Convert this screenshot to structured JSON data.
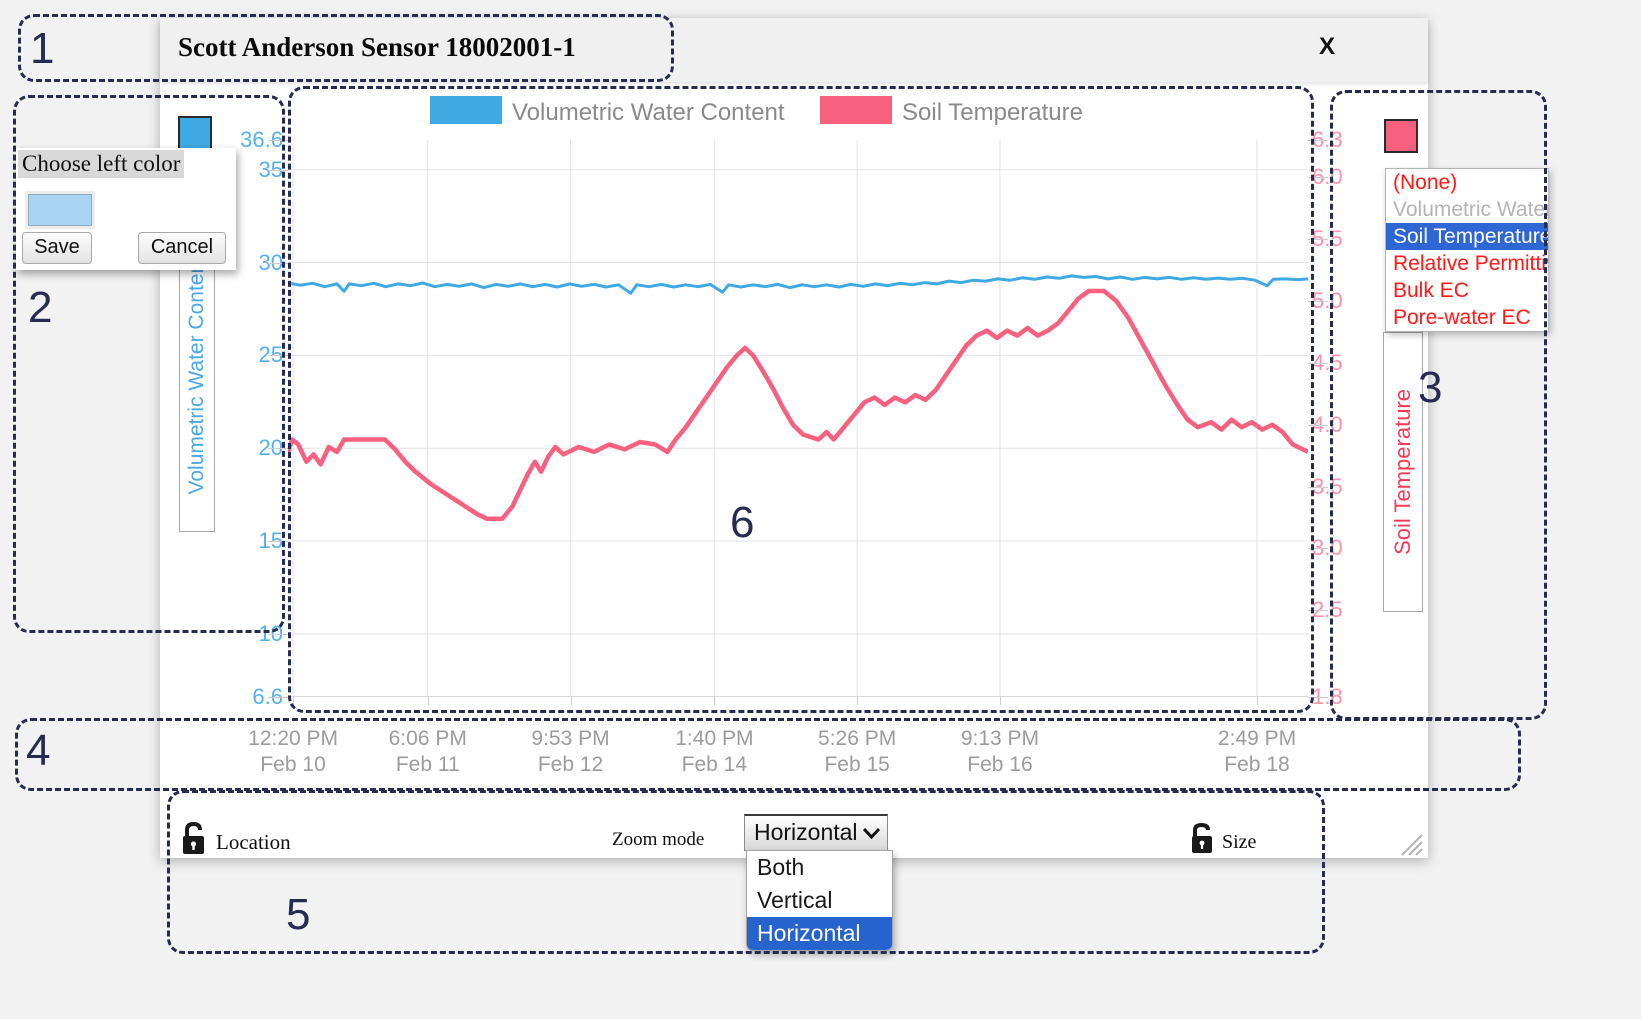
{
  "window": {
    "title": "Scott Anderson Sensor 18002001-1",
    "close_label": "X"
  },
  "color_picker": {
    "title": "Choose left color",
    "save_label": "Save",
    "cancel_label": "Cancel",
    "swatch_color": "#a9d4f3"
  },
  "axis_color_buttons": {
    "left_color": "#3fa9e1",
    "right_color": "#f8607f"
  },
  "series_menu": {
    "selected": "Soil Temperature",
    "items": [
      {
        "label": "(None)",
        "color": "#ff1a1a",
        "selected": false
      },
      {
        "label": "Volumetric Water Content",
        "color": "#b4b4b4",
        "selected": false
      },
      {
        "label": "Soil Temperature",
        "color": "#ffffff",
        "selected": true
      },
      {
        "label": "Relative Permittivity",
        "color": "#ff1a1a",
        "selected": false
      },
      {
        "label": "Bulk EC",
        "color": "#ff1a1a",
        "selected": false
      },
      {
        "label": "Pore-water EC",
        "color": "#ff1a1a",
        "selected": false
      }
    ],
    "highlight_color": "#2e67d3"
  },
  "toolbar": {
    "location_label": "Location",
    "zoom_mode_label": "Zoom mode",
    "zoom_mode_value": "Horizontal",
    "zoom_options": [
      "Both",
      "Vertical",
      "Horizontal"
    ],
    "zoom_selected": "Horizontal",
    "size_label": "Size"
  },
  "annotations": {
    "labels": [
      "1",
      "2",
      "3",
      "4",
      "5",
      "6"
    ]
  },
  "chart_data": {
    "type": "line",
    "legend": [
      {
        "name": "Volumetric Water Content",
        "color": "#3fa9e1"
      },
      {
        "name": "Soil Temperature",
        "color": "#f8607f"
      }
    ],
    "left_axis": {
      "label": "Volumetric Water Content",
      "range": [
        6.6,
        36.6
      ],
      "ticks": [
        "36.6",
        "35",
        "30",
        "25",
        "20",
        "15",
        "10",
        "6.6"
      ],
      "tick_values": [
        36.6,
        35,
        30,
        25,
        20,
        15,
        10,
        6.6
      ],
      "color": "#56b1ea"
    },
    "right_axis": {
      "label": "Soil Temperature",
      "range": [
        1.8,
        6.3
      ],
      "ticks": [
        "6.3",
        "6.0",
        "5.5",
        "5.0",
        "4.5",
        "4.0",
        "3.5",
        "3.0",
        "2.5",
        "1.8"
      ],
      "tick_values": [
        6.3,
        6.0,
        5.5,
        5.0,
        4.5,
        4.0,
        3.5,
        3.0,
        2.5,
        1.8
      ],
      "color": "#fb93a9"
    },
    "x_axis": {
      "ticks": [
        {
          "time": "12:20 PM",
          "date": "Feb 10",
          "pos": 0.005
        },
        {
          "time": "6:06 PM",
          "date": "Feb 11",
          "pos": 0.137
        },
        {
          "time": "9:53 PM",
          "date": "Feb 12",
          "pos": 0.277
        },
        {
          "time": "1:40 PM",
          "date": "Feb 14",
          "pos": 0.418
        },
        {
          "time": "5:26 PM",
          "date": "Feb 15",
          "pos": 0.558
        },
        {
          "time": "9:13 PM",
          "date": "Feb 16",
          "pos": 0.698
        },
        {
          "time": "2:49 PM",
          "date": "Feb 18",
          "pos": 0.95
        }
      ]
    },
    "grid": true,
    "series": [
      {
        "name": "Volumetric Water Content",
        "axis": "left",
        "color": "#3fa9e1",
        "width": 3,
        "points": [
          [
            0,
            28.9
          ],
          [
            0.012,
            28.78
          ],
          [
            0.024,
            28.88
          ],
          [
            0.036,
            28.7
          ],
          [
            0.048,
            28.85
          ],
          [
            0.055,
            28.45
          ],
          [
            0.06,
            28.85
          ],
          [
            0.072,
            28.75
          ],
          [
            0.084,
            28.88
          ],
          [
            0.096,
            28.7
          ],
          [
            0.108,
            28.85
          ],
          [
            0.12,
            28.75
          ],
          [
            0.132,
            28.9
          ],
          [
            0.144,
            28.7
          ],
          [
            0.156,
            28.82
          ],
          [
            0.168,
            28.72
          ],
          [
            0.18,
            28.85
          ],
          [
            0.192,
            28.65
          ],
          [
            0.204,
            28.82
          ],
          [
            0.216,
            28.72
          ],
          [
            0.228,
            28.85
          ],
          [
            0.24,
            28.7
          ],
          [
            0.252,
            28.82
          ],
          [
            0.264,
            28.68
          ],
          [
            0.276,
            28.85
          ],
          [
            0.288,
            28.72
          ],
          [
            0.3,
            28.82
          ],
          [
            0.312,
            28.68
          ],
          [
            0.324,
            28.8
          ],
          [
            0.336,
            28.35
          ],
          [
            0.342,
            28.8
          ],
          [
            0.354,
            28.7
          ],
          [
            0.366,
            28.82
          ],
          [
            0.378,
            28.68
          ],
          [
            0.39,
            28.8
          ],
          [
            0.402,
            28.7
          ],
          [
            0.414,
            28.82
          ],
          [
            0.426,
            28.4
          ],
          [
            0.432,
            28.8
          ],
          [
            0.444,
            28.68
          ],
          [
            0.456,
            28.8
          ],
          [
            0.468,
            28.7
          ],
          [
            0.48,
            28.82
          ],
          [
            0.492,
            28.65
          ],
          [
            0.504,
            28.8
          ],
          [
            0.516,
            28.7
          ],
          [
            0.528,
            28.8
          ],
          [
            0.54,
            28.68
          ],
          [
            0.552,
            28.82
          ],
          [
            0.564,
            28.72
          ],
          [
            0.576,
            28.85
          ],
          [
            0.588,
            28.75
          ],
          [
            0.6,
            28.88
          ],
          [
            0.612,
            28.8
          ],
          [
            0.624,
            28.92
          ],
          [
            0.636,
            28.85
          ],
          [
            0.648,
            29.0
          ],
          [
            0.66,
            28.92
          ],
          [
            0.672,
            29.05
          ],
          [
            0.684,
            29.0
          ],
          [
            0.696,
            29.12
          ],
          [
            0.708,
            29.05
          ],
          [
            0.72,
            29.18
          ],
          [
            0.732,
            29.1
          ],
          [
            0.744,
            29.22
          ],
          [
            0.756,
            29.15
          ],
          [
            0.768,
            29.28
          ],
          [
            0.78,
            29.2
          ],
          [
            0.792,
            29.25
          ],
          [
            0.804,
            29.12
          ],
          [
            0.816,
            29.22
          ],
          [
            0.828,
            29.1
          ],
          [
            0.84,
            29.2
          ],
          [
            0.852,
            29.12
          ],
          [
            0.864,
            29.2
          ],
          [
            0.876,
            29.1
          ],
          [
            0.888,
            29.18
          ],
          [
            0.9,
            29.1
          ],
          [
            0.912,
            29.16
          ],
          [
            0.924,
            29.1
          ],
          [
            0.936,
            29.15
          ],
          [
            0.948,
            29.05
          ],
          [
            0.96,
            28.75
          ],
          [
            0.966,
            29.1
          ],
          [
            0.978,
            29.12
          ],
          [
            0.99,
            29.08
          ],
          [
            1,
            29.12
          ]
        ]
      },
      {
        "name": "Soil Temperature",
        "axis": "right",
        "color": "#f8607f",
        "width": 4.5,
        "points": [
          [
            0,
            3.78
          ],
          [
            0.004,
            3.88
          ],
          [
            0.01,
            3.84
          ],
          [
            0.018,
            3.7
          ],
          [
            0.025,
            3.76
          ],
          [
            0.032,
            3.68
          ],
          [
            0.04,
            3.82
          ],
          [
            0.048,
            3.78
          ],
          [
            0.055,
            3.88
          ],
          [
            0.075,
            3.88
          ],
          [
            0.095,
            3.88
          ],
          [
            0.105,
            3.8
          ],
          [
            0.115,
            3.7
          ],
          [
            0.125,
            3.62
          ],
          [
            0.14,
            3.52
          ],
          [
            0.155,
            3.44
          ],
          [
            0.17,
            3.36
          ],
          [
            0.185,
            3.28
          ],
          [
            0.195,
            3.24
          ],
          [
            0.21,
            3.24
          ],
          [
            0.22,
            3.34
          ],
          [
            0.228,
            3.48
          ],
          [
            0.235,
            3.6
          ],
          [
            0.242,
            3.7
          ],
          [
            0.248,
            3.62
          ],
          [
            0.255,
            3.74
          ],
          [
            0.262,
            3.82
          ],
          [
            0.27,
            3.76
          ],
          [
            0.285,
            3.82
          ],
          [
            0.3,
            3.78
          ],
          [
            0.315,
            3.84
          ],
          [
            0.33,
            3.8
          ],
          [
            0.345,
            3.86
          ],
          [
            0.36,
            3.84
          ],
          [
            0.372,
            3.78
          ],
          [
            0.38,
            3.88
          ],
          [
            0.39,
            3.98
          ],
          [
            0.4,
            4.1
          ],
          [
            0.41,
            4.22
          ],
          [
            0.42,
            4.34
          ],
          [
            0.43,
            4.46
          ],
          [
            0.44,
            4.56
          ],
          [
            0.448,
            4.62
          ],
          [
            0.456,
            4.56
          ],
          [
            0.465,
            4.44
          ],
          [
            0.475,
            4.3
          ],
          [
            0.485,
            4.14
          ],
          [
            0.495,
            4.0
          ],
          [
            0.505,
            3.92
          ],
          [
            0.52,
            3.88
          ],
          [
            0.528,
            3.94
          ],
          [
            0.535,
            3.88
          ],
          [
            0.545,
            3.98
          ],
          [
            0.555,
            4.08
          ],
          [
            0.565,
            4.18
          ],
          [
            0.575,
            4.22
          ],
          [
            0.585,
            4.16
          ],
          [
            0.595,
            4.22
          ],
          [
            0.605,
            4.18
          ],
          [
            0.615,
            4.24
          ],
          [
            0.625,
            4.2
          ],
          [
            0.635,
            4.28
          ],
          [
            0.645,
            4.4
          ],
          [
            0.655,
            4.52
          ],
          [
            0.665,
            4.64
          ],
          [
            0.675,
            4.72
          ],
          [
            0.685,
            4.76
          ],
          [
            0.695,
            4.7
          ],
          [
            0.705,
            4.76
          ],
          [
            0.715,
            4.72
          ],
          [
            0.725,
            4.78
          ],
          [
            0.735,
            4.72
          ],
          [
            0.745,
            4.76
          ],
          [
            0.755,
            4.82
          ],
          [
            0.765,
            4.92
          ],
          [
            0.775,
            5.02
          ],
          [
            0.785,
            5.08
          ],
          [
            0.8,
            5.08
          ],
          [
            0.812,
            5.0
          ],
          [
            0.824,
            4.86
          ],
          [
            0.836,
            4.68
          ],
          [
            0.848,
            4.5
          ],
          [
            0.86,
            4.32
          ],
          [
            0.872,
            4.16
          ],
          [
            0.882,
            4.04
          ],
          [
            0.892,
            3.98
          ],
          [
            0.905,
            4.02
          ],
          [
            0.915,
            3.96
          ],
          [
            0.925,
            4.04
          ],
          [
            0.935,
            3.98
          ],
          [
            0.945,
            4.02
          ],
          [
            0.955,
            3.96
          ],
          [
            0.965,
            4.0
          ],
          [
            0.975,
            3.94
          ],
          [
            0.985,
            3.84
          ],
          [
            1,
            3.78
          ]
        ]
      }
    ]
  }
}
